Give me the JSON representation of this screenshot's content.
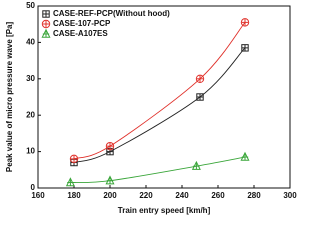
{
  "chart_data": {
    "type": "scatter",
    "x_label": "Train entry speed [km/h]",
    "y_label": "Peak value of micro pressure wave [Pa]",
    "xlim": [
      160,
      300
    ],
    "xticks": [
      160,
      180,
      200,
      220,
      240,
      260,
      280,
      300
    ],
    "ylim": [
      0,
      50
    ],
    "yticks": [
      0,
      10,
      20,
      30,
      40,
      50
    ],
    "legend": "top-left",
    "series": [
      {
        "name": "CASE-REF-PCP(Without hood)",
        "color": "#222222",
        "marker": "square",
        "x": [
          180,
          200,
          250,
          275
        ],
        "values": [
          7,
          10,
          25,
          38.5
        ]
      },
      {
        "name": "CASE-107-PCP",
        "color": "#e0302a",
        "marker": "circle",
        "x": [
          180,
          200,
          250,
          275
        ],
        "values": [
          8,
          11.5,
          30,
          45.5
        ]
      },
      {
        "name": "CASE-A107ES",
        "color": "#3aa63a",
        "marker": "triangle",
        "x": [
          178,
          200,
          248,
          275
        ],
        "values": [
          1.5,
          2,
          6,
          8.5
        ]
      }
    ]
  }
}
